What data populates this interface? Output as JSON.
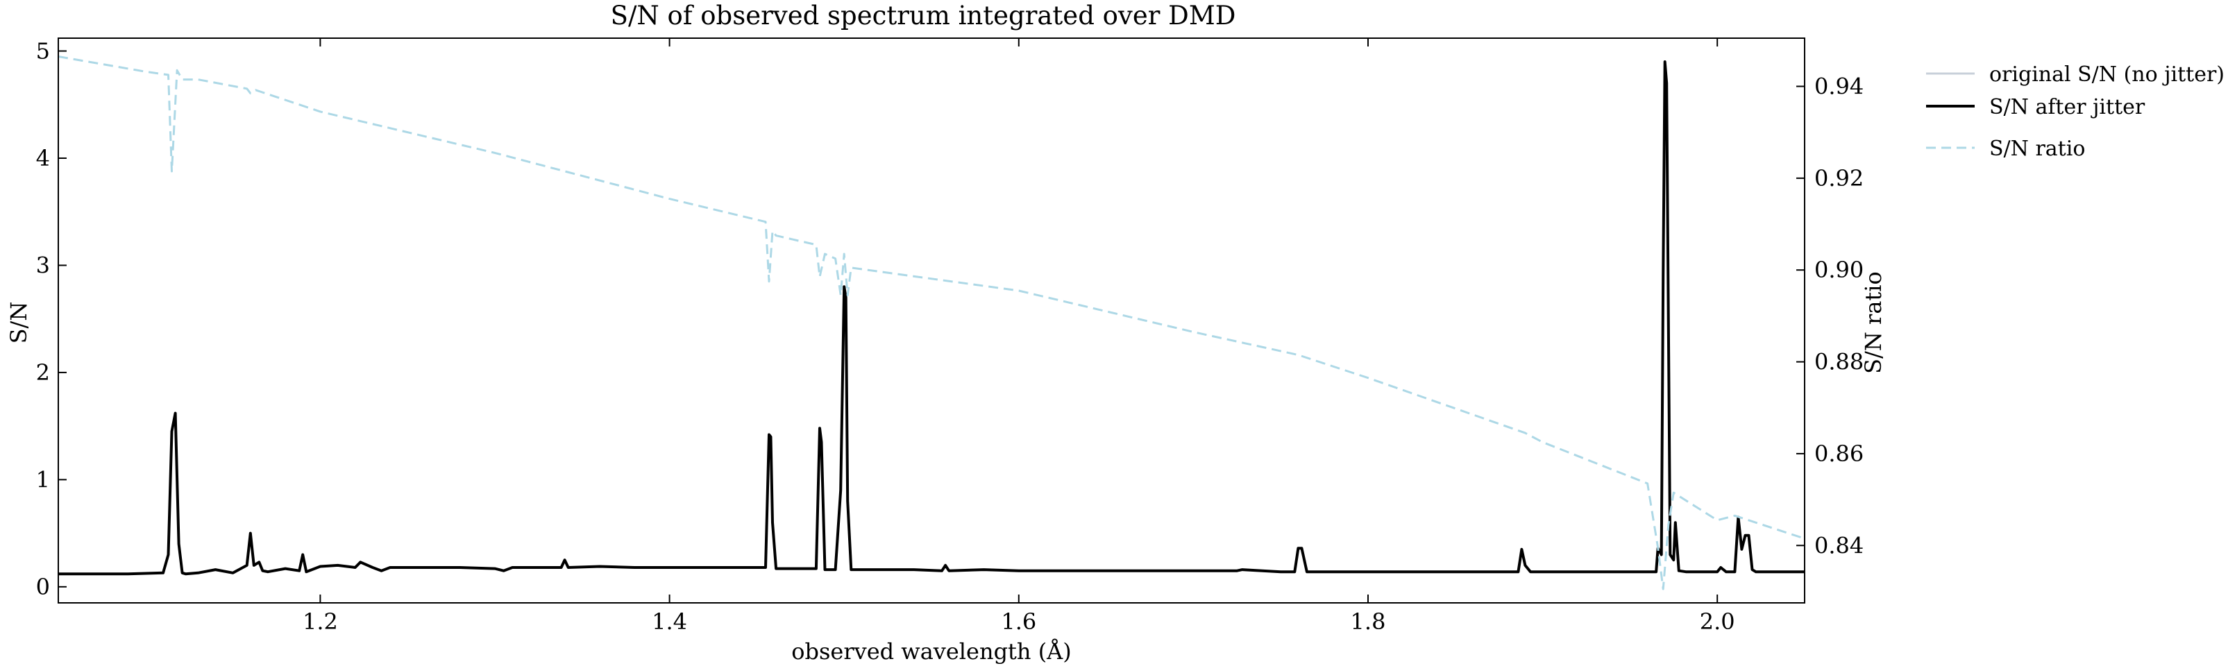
{
  "chart_data": {
    "type": "line",
    "title": "S/N of observed spectrum integrated over DMD",
    "xlabel": "observed wavelength (Å)",
    "ylabel": "S/N",
    "y2label": "S/N ratio",
    "xlim": [
      1.05,
      2.05
    ],
    "ylim": [
      -0.15,
      5.12
    ],
    "y2lim": [
      0.8275,
      0.9505
    ],
    "xticks": [
      1.2,
      1.4,
      1.6,
      1.8,
      2.0
    ],
    "xtick_labels": [
      "1.2",
      "1.4",
      "1.6",
      "1.8",
      "2.0"
    ],
    "yticks": [
      0,
      1,
      2,
      3,
      4,
      5
    ],
    "ytick_labels": [
      "0",
      "1",
      "2",
      "3",
      "4",
      "5"
    ],
    "y2ticks": [
      0.84,
      0.86,
      0.88,
      0.9,
      0.92,
      0.94
    ],
    "y2tick_labels": [
      "0.84",
      "0.86",
      "0.88",
      "0.90",
      "0.92",
      "0.94"
    ],
    "legend_position": "outside-right",
    "legend": [
      {
        "label": "original S/N (no jitter)",
        "color": "#c8d0da",
        "style": "solid"
      },
      {
        "label": "S/N after jitter",
        "color": "#000000",
        "style": "solid"
      },
      {
        "label": "S/N ratio",
        "color": "#add8e6",
        "style": "dashed"
      }
    ],
    "series": [
      {
        "name": "S/N after jitter",
        "axis": "left",
        "x": [
          1.05,
          1.07,
          1.09,
          1.11,
          1.113,
          1.115,
          1.117,
          1.119,
          1.121,
          1.123,
          1.13,
          1.14,
          1.15,
          1.158,
          1.16,
          1.162,
          1.165,
          1.167,
          1.17,
          1.18,
          1.188,
          1.19,
          1.192,
          1.2,
          1.21,
          1.22,
          1.223,
          1.23,
          1.235,
          1.24,
          1.26,
          1.28,
          1.3,
          1.305,
          1.31,
          1.33,
          1.338,
          1.34,
          1.342,
          1.36,
          1.38,
          1.4,
          1.42,
          1.44,
          1.455,
          1.457,
          1.458,
          1.459,
          1.461,
          1.47,
          1.484,
          1.486,
          1.487,
          1.489,
          1.495,
          1.498,
          1.5,
          1.501,
          1.502,
          1.504,
          1.52,
          1.54,
          1.556,
          1.558,
          1.56,
          1.58,
          1.6,
          1.64,
          1.68,
          1.7,
          1.725,
          1.728,
          1.75,
          1.758,
          1.76,
          1.762,
          1.765,
          1.78,
          1.8,
          1.84,
          1.88,
          1.886,
          1.888,
          1.89,
          1.893,
          1.9,
          1.92,
          1.94,
          1.96,
          1.965,
          1.966,
          1.968,
          1.969,
          1.97,
          1.971,
          1.973,
          1.975,
          1.976,
          1.978,
          1.982,
          1.99,
          2.0,
          2.002,
          2.005,
          2.01,
          2.012,
          2.014,
          2.016,
          2.018,
          2.02,
          2.022,
          2.03,
          2.04,
          2.05
        ],
        "values": [
          0.12,
          0.12,
          0.12,
          0.13,
          0.3,
          1.45,
          1.62,
          0.4,
          0.13,
          0.12,
          0.13,
          0.16,
          0.13,
          0.2,
          0.5,
          0.2,
          0.23,
          0.15,
          0.14,
          0.17,
          0.15,
          0.3,
          0.14,
          0.19,
          0.2,
          0.18,
          0.23,
          0.18,
          0.15,
          0.18,
          0.18,
          0.18,
          0.17,
          0.15,
          0.18,
          0.18,
          0.18,
          0.25,
          0.18,
          0.19,
          0.18,
          0.18,
          0.18,
          0.18,
          0.18,
          1.42,
          1.4,
          0.6,
          0.17,
          0.17,
          0.17,
          1.48,
          1.35,
          0.16,
          0.16,
          0.9,
          2.8,
          2.7,
          0.8,
          0.16,
          0.16,
          0.16,
          0.15,
          0.2,
          0.15,
          0.16,
          0.15,
          0.15,
          0.15,
          0.15,
          0.15,
          0.16,
          0.14,
          0.14,
          0.36,
          0.36,
          0.14,
          0.14,
          0.14,
          0.14,
          0.14,
          0.14,
          0.35,
          0.2,
          0.14,
          0.14,
          0.14,
          0.14,
          0.14,
          0.14,
          0.36,
          0.3,
          2.9,
          4.9,
          4.7,
          0.3,
          0.25,
          0.6,
          0.15,
          0.14,
          0.14,
          0.14,
          0.18,
          0.14,
          0.14,
          0.65,
          0.35,
          0.48,
          0.48,
          0.16,
          0.14,
          0.14,
          0.14,
          0.14
        ]
      },
      {
        "name": "S/N ratio",
        "axis": "right",
        "x": [
          1.05,
          1.1,
          1.113,
          1.115,
          1.118,
          1.121,
          1.13,
          1.158,
          1.16,
          1.163,
          1.2,
          1.3,
          1.4,
          1.455,
          1.457,
          1.459,
          1.461,
          1.484,
          1.486,
          1.489,
          1.495,
          1.498,
          1.5,
          1.502,
          1.504,
          1.6,
          1.7,
          1.76,
          1.8,
          1.89,
          1.9,
          1.96,
          1.966,
          1.969,
          1.972,
          1.975,
          2.0,
          2.01,
          2.05
        ],
        "values": [
          0.9465,
          0.9432,
          0.9425,
          0.9215,
          0.9435,
          0.9415,
          0.9415,
          0.9395,
          0.9385,
          0.9392,
          0.9345,
          0.9255,
          0.9155,
          0.9105,
          0.8975,
          0.9085,
          0.9075,
          0.9055,
          0.8985,
          0.9035,
          0.9025,
          0.8945,
          0.9035,
          0.8945,
          0.9005,
          0.8955,
          0.8865,
          0.8815,
          0.8765,
          0.8645,
          0.8625,
          0.8535,
          0.8395,
          0.8305,
          0.8445,
          0.8515,
          0.8455,
          0.8465,
          0.8415
        ]
      }
    ]
  }
}
